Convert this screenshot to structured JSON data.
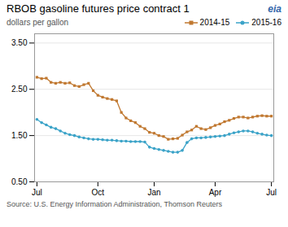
{
  "chart_data": {
    "type": "line",
    "title": "RBOB gasoline futures price contract 1",
    "y_label": "dollars per gallon",
    "source": "Source: U.S. Energy Information Administration, Thomson Reuters",
    "annotations": [
      "eia"
    ],
    "categories": [
      "Jul",
      null,
      null,
      null,
      null,
      null,
      null,
      null,
      null,
      null,
      null,
      null,
      null,
      "Oct",
      null,
      null,
      null,
      null,
      null,
      null,
      null,
      null,
      null,
      null,
      null,
      "Jan",
      null,
      null,
      null,
      null,
      null,
      null,
      null,
      null,
      null,
      null,
      null,
      null,
      "Apr",
      null,
      null,
      null,
      null,
      null,
      null,
      null,
      null,
      null,
      null,
      null,
      "Jul"
    ],
    "series": [
      {
        "name": "2014-15",
        "color": "#C07830",
        "marker": "square",
        "line_style": "solid",
        "values": [
          2.76,
          2.73,
          2.74,
          2.65,
          2.63,
          2.65,
          2.63,
          2.64,
          2.58,
          2.56,
          2.6,
          2.63,
          2.47,
          2.37,
          2.33,
          2.3,
          2.28,
          2.25,
          2.0,
          1.88,
          1.82,
          1.78,
          1.7,
          1.65,
          1.57,
          1.55,
          1.5,
          1.48,
          1.42,
          1.43,
          1.44,
          1.51,
          1.58,
          1.62,
          1.7,
          1.65,
          1.63,
          1.67,
          1.72,
          1.75,
          1.8,
          1.83,
          1.87,
          1.9,
          1.9,
          1.88,
          1.9,
          1.92,
          1.93,
          1.92,
          1.92
        ]
      },
      {
        "name": "2015-16",
        "color": "#3BA3C8",
        "marker": "circle",
        "line_style": "solid",
        "values": [
          1.85,
          1.78,
          1.73,
          1.68,
          1.65,
          1.6,
          1.55,
          1.52,
          1.5,
          1.47,
          1.45,
          1.43,
          1.42,
          1.42,
          1.41,
          1.4,
          1.4,
          1.39,
          1.38,
          1.38,
          1.37,
          1.37,
          1.37,
          1.36,
          1.25,
          1.22,
          1.2,
          1.18,
          1.16,
          1.14,
          1.14,
          1.18,
          1.35,
          1.43,
          1.45,
          1.45,
          1.46,
          1.47,
          1.48,
          1.49,
          1.5,
          1.53,
          1.56,
          1.58,
          1.6,
          1.6,
          1.58,
          1.55,
          1.53,
          1.51,
          1.5
        ]
      }
    ],
    "ylim": [
      0.5,
      3.7
    ],
    "yticks": [
      {
        "value": 0.5,
        "label": "0.50"
      },
      {
        "value": 1.5,
        "label": "1.50"
      },
      {
        "value": 2.5,
        "label": "2.50"
      },
      {
        "value": 3.5,
        "label": "3.50"
      }
    ],
    "grid": true,
    "legend": "top-right"
  }
}
